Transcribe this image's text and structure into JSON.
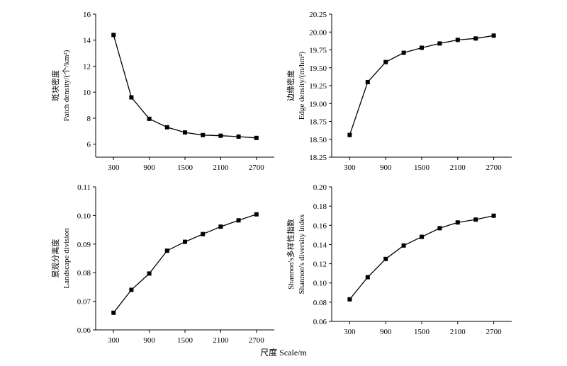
{
  "figure": {
    "shared_xlabel": "尺度 Scale/m"
  },
  "chart_data": [
    {
      "type": "line",
      "ylabel": [
        "斑块密度",
        "Patch density/(个/km²)"
      ],
      "x": [
        300,
        600,
        900,
        1200,
        1500,
        1800,
        2100,
        2400,
        2700
      ],
      "series": [
        {
          "values": [
            14.4,
            9.6,
            7.95,
            7.3,
            6.9,
            6.7,
            6.65,
            6.58,
            6.48
          ]
        }
      ],
      "xticks": [
        "300",
        "900",
        "1500",
        "2100",
        "2700"
      ],
      "xlim": [
        0,
        3000
      ],
      "yticks": [
        "6",
        "8",
        "10",
        "12",
        "14",
        "16"
      ],
      "ylim": [
        5,
        16
      ],
      "marker": "square",
      "grid": false,
      "color": "#000000"
    },
    {
      "type": "line",
      "ylabel": [
        "边缘密度",
        "Edge density/(m/hm²)"
      ],
      "x": [
        300,
        600,
        900,
        1200,
        1500,
        1800,
        2100,
        2400,
        2700
      ],
      "series": [
        {
          "values": [
            18.56,
            19.3,
            19.58,
            19.71,
            19.78,
            19.84,
            19.89,
            19.91,
            19.95
          ]
        }
      ],
      "xticks": [
        "300",
        "900",
        "1500",
        "2100",
        "2700"
      ],
      "xlim": [
        0,
        3000
      ],
      "yticks": [
        "18.25",
        "18.50",
        "18.75",
        "19.00",
        "19.25",
        "19.50",
        "19.75",
        "20.00",
        "20.25"
      ],
      "ylim": [
        18.25,
        20.25
      ],
      "marker": "square",
      "grid": false,
      "color": "#000000"
    },
    {
      "type": "line",
      "ylabel": [
        "景观分离度",
        "Landscape division"
      ],
      "x": [
        300,
        600,
        900,
        1200,
        1500,
        1800,
        2100,
        2400,
        2700
      ],
      "series": [
        {
          "values": [
            0.066,
            0.074,
            0.0797,
            0.0877,
            0.0908,
            0.0935,
            0.0961,
            0.0983,
            0.1004
          ]
        }
      ],
      "xticks": [
        "300",
        "900",
        "1500",
        "2100",
        "2700"
      ],
      "xlim": [
        0,
        3000
      ],
      "yticks": [
        "0.06",
        "0.07",
        "0.08",
        "0.09",
        "0.10",
        "0.11"
      ],
      "ylim": [
        0.06,
        0.11
      ],
      "marker": "square",
      "grid": false,
      "color": "#000000"
    },
    {
      "type": "line",
      "ylabel": [
        "Shannon's多样性指数",
        "Shannon's diversity index"
      ],
      "x": [
        300,
        600,
        900,
        1200,
        1500,
        1800,
        2100,
        2400,
        2700
      ],
      "series": [
        {
          "values": [
            0.083,
            0.106,
            0.125,
            0.139,
            0.148,
            0.157,
            0.163,
            0.166,
            0.17
          ]
        }
      ],
      "xticks": [
        "300",
        "900",
        "1500",
        "2100",
        "2700"
      ],
      "xlim": [
        0,
        3000
      ],
      "yticks": [
        "0.06",
        "0.08",
        "0.10",
        "0.12",
        "0.14",
        "0.16",
        "0.18",
        "0.20"
      ],
      "ylim": [
        0.06,
        0.2
      ],
      "marker": "square",
      "grid": false,
      "color": "#000000"
    }
  ]
}
